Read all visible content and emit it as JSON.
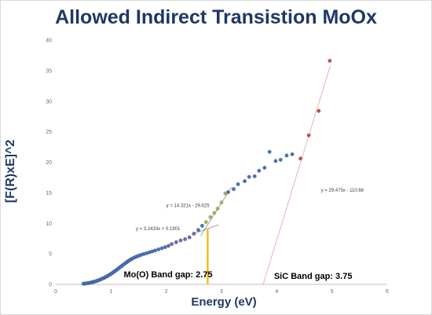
{
  "chart_data": {
    "type": "scatter",
    "title": "Allowed Indirect Transistion MoOx",
    "xlabel": "Energy (eV)",
    "ylabel": "[F(R)xE]^2",
    "xlim": [
      0,
      6
    ],
    "ylim": [
      0,
      40
    ],
    "xticks": [
      "0",
      "1",
      "2",
      "3",
      "4",
      "5",
      "6"
    ],
    "yticks": [
      "0",
      "5",
      "10",
      "15",
      "20",
      "25",
      "30",
      "35",
      "40"
    ],
    "grid": false,
    "colors": {
      "blue": "#4a72b8",
      "purple": "#8064a2",
      "green": "#9bbb59",
      "red": "#c0504d",
      "orange": "#f4b400",
      "fit_dark": "#7f7f7f",
      "fit_red": "#e6a0a0"
    },
    "series": [
      {
        "color": "#4a72b8",
        "points": [
          [
            0.5,
            0.1
          ],
          [
            0.52,
            0.12
          ],
          [
            0.54,
            0.14
          ],
          [
            0.56,
            0.17
          ],
          [
            0.58,
            0.2
          ],
          [
            0.6,
            0.23
          ],
          [
            0.62,
            0.27
          ],
          [
            0.64,
            0.31
          ],
          [
            0.66,
            0.35
          ],
          [
            0.68,
            0.4
          ],
          [
            0.7,
            0.45
          ],
          [
            0.72,
            0.5
          ],
          [
            0.74,
            0.56
          ],
          [
            0.76,
            0.62
          ],
          [
            0.78,
            0.69
          ],
          [
            0.8,
            0.76
          ],
          [
            0.82,
            0.84
          ],
          [
            0.84,
            0.92
          ],
          [
            0.86,
            1.0
          ],
          [
            0.88,
            1.09
          ],
          [
            0.9,
            1.18
          ],
          [
            0.92,
            1.28
          ],
          [
            0.94,
            1.38
          ],
          [
            0.96,
            1.49
          ],
          [
            0.98,
            1.6
          ],
          [
            1.0,
            1.72
          ],
          [
            1.02,
            1.84
          ],
          [
            1.04,
            1.97
          ],
          [
            1.06,
            2.1
          ],
          [
            1.08,
            2.23
          ],
          [
            1.1,
            2.37
          ],
          [
            1.12,
            2.5
          ],
          [
            1.14,
            2.64
          ],
          [
            1.16,
            2.78
          ],
          [
            1.18,
            2.92
          ],
          [
            1.2,
            3.06
          ],
          [
            1.22,
            3.2
          ],
          [
            1.24,
            3.33
          ],
          [
            1.26,
            3.47
          ],
          [
            1.28,
            3.6
          ],
          [
            1.3,
            3.73
          ],
          [
            1.32,
            3.85
          ],
          [
            1.34,
            3.97
          ],
          [
            1.36,
            4.08
          ],
          [
            1.38,
            4.19
          ],
          [
            1.4,
            4.29
          ],
          [
            1.43,
            4.42
          ],
          [
            1.46,
            4.54
          ],
          [
            1.49,
            4.65
          ],
          [
            1.52,
            4.75
          ],
          [
            1.56,
            4.87
          ],
          [
            1.6,
            4.99
          ],
          [
            1.65,
            5.12
          ],
          [
            1.7,
            5.26
          ],
          [
            1.75,
            5.4
          ],
          [
            1.8,
            5.55
          ],
          [
            1.86,
            5.73
          ],
          [
            1.92,
            5.91
          ],
          [
            1.98,
            6.1
          ],
          [
            2.04,
            6.3
          ],
          [
            2.58,
            8.9
          ],
          [
            2.65,
            9.6
          ],
          [
            3.12,
            15.1
          ],
          [
            3.22,
            15.6
          ],
          [
            3.3,
            16.4
          ],
          [
            3.42,
            16.9
          ],
          [
            3.5,
            17.6
          ],
          [
            3.6,
            17.7
          ],
          [
            3.68,
            18.6
          ],
          [
            3.78,
            19.1
          ],
          [
            3.87,
            21.7
          ],
          [
            3.98,
            20.2
          ],
          [
            4.07,
            20.4
          ],
          [
            4.18,
            21.1
          ],
          [
            4.28,
            21.3
          ]
        ]
      },
      {
        "color": "#8064a2",
        "points": [
          [
            2.1,
            6.6
          ],
          [
            2.18,
            6.9
          ],
          [
            2.26,
            7.2
          ],
          [
            2.34,
            7.4
          ],
          [
            2.42,
            7.7
          ],
          [
            2.5,
            8.3
          ]
        ]
      },
      {
        "color": "#9bbb59",
        "points": [
          [
            2.72,
            10.2
          ],
          [
            2.8,
            11.0
          ],
          [
            2.87,
            11.7
          ],
          [
            2.93,
            12.4
          ],
          [
            3.0,
            13.4
          ],
          [
            3.07,
            14.9
          ]
        ]
      },
      {
        "color": "#c0504d",
        "points": [
          [
            4.43,
            20.6
          ],
          [
            4.58,
            24.4
          ],
          [
            4.76,
            28.4
          ],
          [
            4.96,
            36.6
          ]
        ]
      }
    ],
    "trendlines": [
      {
        "label": "y = 14.321x - 29.625",
        "slope": 14.321,
        "intercept": -29.625,
        "x_range": [
          2.62,
          3.18
        ]
      },
      {
        "label": "y = 3.2433x + 0.1901",
        "slope": 3.2433,
        "intercept": 0.1901,
        "x_range": [
          2.5,
          2.95
        ]
      },
      {
        "label": "y = 29.475x - 110.66",
        "slope": 29.475,
        "intercept": -110.66,
        "x_range": [
          3.75,
          4.97
        ]
      }
    ],
    "markers": [
      {
        "label": "Mo(O) Band gap: 2.75",
        "x": 2.75
      },
      {
        "label": "SiC Band gap: 3.75",
        "x": 3.75
      }
    ]
  }
}
